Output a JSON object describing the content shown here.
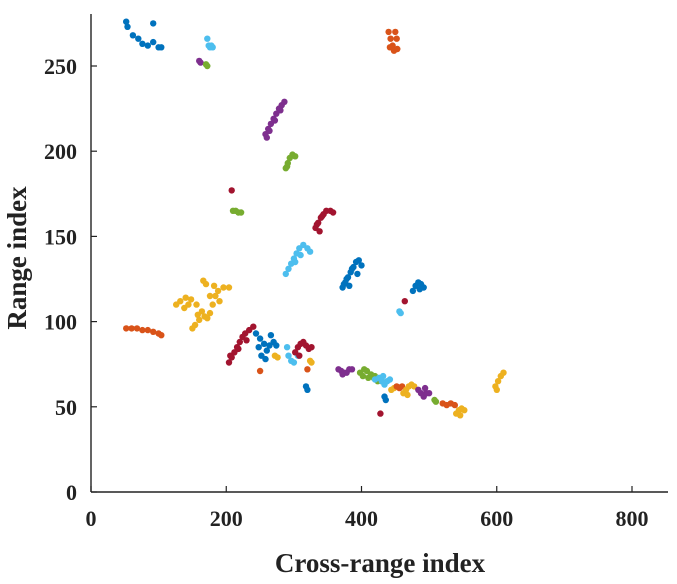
{
  "chart_data": {
    "type": "scatter",
    "title": "",
    "xlabel": "Cross-range index",
    "ylabel": "Range index",
    "xlim": [
      0,
      850
    ],
    "ylim": [
      0,
      280
    ],
    "xticks": [
      0,
      200,
      400,
      600,
      800
    ],
    "yticks": [
      0,
      50,
      100,
      150,
      200,
      250
    ],
    "grid": false,
    "legend": "none",
    "clusters": [
      {
        "color": "#0072BD",
        "points": [
          [
            52,
            276
          ],
          [
            54,
            273
          ],
          [
            62,
            268
          ],
          [
            70,
            266
          ],
          [
            76,
            263
          ],
          [
            84,
            262
          ],
          [
            92,
            264
          ],
          [
            100,
            261
          ],
          [
            104,
            261
          ],
          [
            92,
            275
          ]
        ]
      },
      {
        "color": "#4DBEEE",
        "points": [
          [
            172,
            266
          ],
          [
            174,
            262
          ],
          [
            176,
            261
          ],
          [
            180,
            261
          ],
          [
            178,
            262
          ]
        ]
      },
      {
        "color": "#7E2F8E",
        "points": [
          [
            160,
            253
          ],
          [
            162,
            252
          ]
        ]
      },
      {
        "color": "#77AC30",
        "points": [
          [
            170,
            251
          ],
          [
            172,
            250
          ]
        ]
      },
      {
        "color": "#D95319",
        "points": [
          [
            440,
            270
          ],
          [
            443,
            266
          ],
          [
            446,
            262
          ],
          [
            448,
            259
          ],
          [
            452,
            266
          ],
          [
            450,
            270
          ],
          [
            442,
            261
          ],
          [
            453,
            260
          ]
        ]
      },
      {
        "color": "#7E2F8E",
        "points": [
          [
            258,
            210
          ],
          [
            262,
            213
          ],
          [
            266,
            216
          ],
          [
            270,
            219
          ],
          [
            274,
            222
          ],
          [
            278,
            225
          ],
          [
            282,
            227
          ],
          [
            286,
            229
          ],
          [
            264,
            212
          ],
          [
            272,
            218
          ],
          [
            280,
            224
          ],
          [
            260,
            208
          ]
        ]
      },
      {
        "color": "#77AC30",
        "points": [
          [
            288,
            190
          ],
          [
            291,
            193
          ],
          [
            294,
            196
          ],
          [
            298,
            198
          ],
          [
            302,
            197
          ],
          [
            290,
            191
          ]
        ]
      },
      {
        "color": "#A2142F",
        "points": [
          [
            208,
            177
          ]
        ]
      },
      {
        "color": "#77AC30",
        "points": [
          [
            210,
            165
          ],
          [
            214,
            165
          ],
          [
            218,
            164
          ],
          [
            222,
            164
          ]
        ]
      },
      {
        "color": "#A2142F",
        "points": [
          [
            332,
            155
          ],
          [
            336,
            158
          ],
          [
            340,
            161
          ],
          [
            344,
            163
          ],
          [
            348,
            165
          ],
          [
            354,
            165
          ],
          [
            358,
            164
          ],
          [
            334,
            157
          ],
          [
            342,
            162
          ],
          [
            338,
            153
          ]
        ]
      },
      {
        "color": "#4DBEEE",
        "points": [
          [
            288,
            128
          ],
          [
            292,
            131
          ],
          [
            296,
            134
          ],
          [
            300,
            137
          ],
          [
            304,
            140
          ],
          [
            308,
            143
          ],
          [
            314,
            145
          ],
          [
            320,
            143
          ],
          [
            324,
            141
          ],
          [
            310,
            139
          ],
          [
            302,
            135
          ]
        ]
      },
      {
        "color": "#0072BD",
        "points": [
          [
            372,
            120
          ],
          [
            376,
            123
          ],
          [
            380,
            126
          ],
          [
            384,
            129
          ],
          [
            388,
            132
          ],
          [
            392,
            135
          ],
          [
            396,
            136
          ],
          [
            400,
            133
          ],
          [
            378,
            125
          ],
          [
            386,
            131
          ],
          [
            394,
            128
          ],
          [
            374,
            122
          ],
          [
            382,
            121
          ]
        ]
      },
      {
        "color": "#0072BD",
        "points": [
          [
            476,
            118
          ],
          [
            480,
            121
          ],
          [
            484,
            123
          ],
          [
            488,
            122
          ],
          [
            492,
            120
          ],
          [
            486,
            119
          ]
        ]
      },
      {
        "color": "#A2142F",
        "points": [
          [
            464,
            112
          ]
        ]
      },
      {
        "color": "#4DBEEE",
        "points": [
          [
            456,
            106
          ],
          [
            458,
            105
          ]
        ]
      },
      {
        "color": "#EDB120",
        "points": [
          [
            126,
            110
          ],
          [
            132,
            112
          ],
          [
            140,
            114
          ],
          [
            148,
            113
          ],
          [
            156,
            110
          ],
          [
            164,
            106
          ],
          [
            168,
            103
          ],
          [
            172,
            102
          ],
          [
            176,
            105
          ],
          [
            180,
            110
          ],
          [
            184,
            115
          ],
          [
            188,
            118
          ],
          [
            196,
            120
          ],
          [
            204,
            120
          ],
          [
            190,
            112
          ],
          [
            160,
            101
          ],
          [
            154,
            98
          ],
          [
            150,
            96
          ],
          [
            158,
            104
          ],
          [
            138,
            108
          ],
          [
            144,
            110
          ],
          [
            176,
            115
          ],
          [
            170,
            122
          ],
          [
            166,
            124
          ],
          [
            182,
            121
          ]
        ]
      },
      {
        "color": "#D95319",
        "points": [
          [
            52,
            96
          ],
          [
            60,
            96
          ],
          [
            68,
            96
          ],
          [
            76,
            95
          ],
          [
            84,
            95
          ],
          [
            92,
            94
          ],
          [
            100,
            93
          ],
          [
            104,
            92
          ]
        ]
      },
      {
        "color": "#A2142F",
        "points": [
          [
            204,
            76
          ],
          [
            208,
            79
          ],
          [
            212,
            82
          ],
          [
            216,
            85
          ],
          [
            220,
            88
          ],
          [
            224,
            91
          ],
          [
            228,
            93
          ],
          [
            234,
            95
          ],
          [
            240,
            97
          ],
          [
            206,
            80
          ],
          [
            218,
            84
          ],
          [
            230,
            89
          ]
        ]
      },
      {
        "color": "#0072BD",
        "points": [
          [
            244,
            93
          ],
          [
            250,
            90
          ],
          [
            256,
            87
          ],
          [
            260,
            83
          ],
          [
            264,
            86
          ],
          [
            270,
            88
          ],
          [
            252,
            80
          ],
          [
            258,
            78
          ],
          [
            266,
            92
          ],
          [
            274,
            86
          ],
          [
            248,
            85
          ]
        ]
      },
      {
        "color": "#EDB120",
        "points": [
          [
            272,
            80
          ],
          [
            276,
            79
          ]
        ]
      },
      {
        "color": "#D95319",
        "points": [
          [
            250,
            71
          ]
        ]
      },
      {
        "color": "#4DBEEE",
        "points": [
          [
            290,
            85
          ],
          [
            292,
            80
          ],
          [
            296,
            77
          ],
          [
            300,
            76
          ],
          [
            306,
            80
          ]
        ]
      },
      {
        "color": "#A2142F",
        "points": [
          [
            302,
            82
          ],
          [
            306,
            85
          ],
          [
            310,
            87
          ],
          [
            314,
            88
          ],
          [
            318,
            86
          ],
          [
            322,
            84
          ],
          [
            326,
            85
          ],
          [
            308,
            80
          ]
        ]
      },
      {
        "color": "#EDB120",
        "points": [
          [
            324,
            77
          ],
          [
            326,
            76
          ]
        ]
      },
      {
        "color": "#D95319",
        "points": [
          [
            320,
            72
          ]
        ]
      },
      {
        "color": "#0072BD",
        "points": [
          [
            318,
            62
          ],
          [
            320,
            60
          ]
        ]
      },
      {
        "color": "#7E2F8E",
        "points": [
          [
            366,
            72
          ],
          [
            370,
            71
          ],
          [
            374,
            70
          ],
          [
            378,
            70
          ],
          [
            382,
            72
          ],
          [
            386,
            72
          ],
          [
            372,
            69
          ]
        ]
      },
      {
        "color": "#77AC30",
        "points": [
          [
            398,
            70
          ],
          [
            404,
            72
          ],
          [
            408,
            71
          ],
          [
            414,
            69
          ],
          [
            418,
            67
          ],
          [
            424,
            65
          ],
          [
            430,
            65
          ],
          [
            402,
            68
          ],
          [
            410,
            67
          ],
          [
            420,
            68
          ]
        ]
      },
      {
        "color": "#4DBEEE",
        "points": [
          [
            420,
            66
          ],
          [
            426,
            67
          ],
          [
            430,
            65
          ],
          [
            434,
            63
          ],
          [
            438,
            65
          ],
          [
            442,
            66
          ],
          [
            432,
            68
          ]
        ]
      },
      {
        "color": "#0072BD",
        "points": [
          [
            434,
            56
          ],
          [
            436,
            54
          ]
        ]
      },
      {
        "color": "#A2142F",
        "points": [
          [
            428,
            46
          ]
        ]
      },
      {
        "color": "#EDB120",
        "points": [
          [
            444,
            60
          ],
          [
            448,
            61
          ]
        ]
      },
      {
        "color": "#D95319",
        "points": [
          [
            452,
            62
          ],
          [
            456,
            61
          ],
          [
            460,
            62
          ]
        ]
      },
      {
        "color": "#EDB120",
        "points": [
          [
            462,
            58
          ],
          [
            466,
            60
          ],
          [
            470,
            62
          ],
          [
            474,
            63
          ],
          [
            478,
            62
          ],
          [
            468,
            57
          ]
        ]
      },
      {
        "color": "#7E2F8E",
        "points": [
          [
            484,
            60
          ],
          [
            488,
            58
          ],
          [
            492,
            56
          ],
          [
            496,
            58
          ],
          [
            500,
            58
          ],
          [
            494,
            61
          ]
        ]
      },
      {
        "color": "#77AC30",
        "points": [
          [
            508,
            54
          ],
          [
            510,
            53
          ]
        ]
      },
      {
        "color": "#D95319",
        "points": [
          [
            520,
            52
          ],
          [
            526,
            51
          ],
          [
            532,
            52
          ],
          [
            538,
            51
          ]
        ]
      },
      {
        "color": "#EDB120",
        "points": [
          [
            540,
            46
          ],
          [
            544,
            48
          ],
          [
            548,
            49
          ],
          [
            552,
            48
          ],
          [
            546,
            45
          ]
        ]
      },
      {
        "color": "#EDB120",
        "points": [
          [
            598,
            62
          ],
          [
            602,
            65
          ],
          [
            606,
            68
          ],
          [
            610,
            70
          ],
          [
            600,
            60
          ]
        ]
      }
    ]
  }
}
